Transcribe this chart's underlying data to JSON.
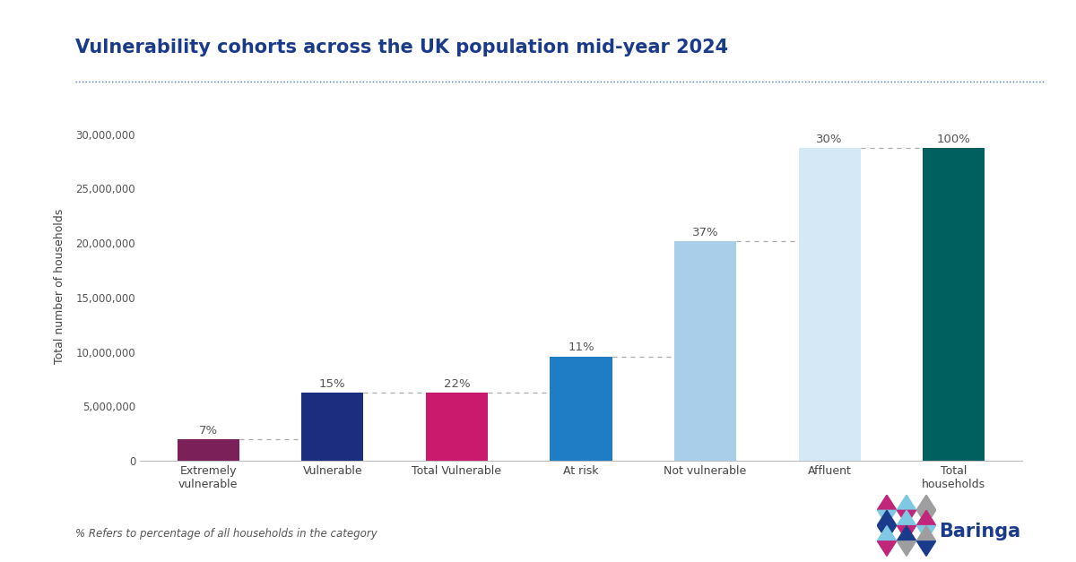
{
  "title": "Vulnerability cohorts across the UK population mid-year 2024",
  "title_color": "#1a3a8c",
  "ylabel": "Total number of households",
  "categories": [
    "Extremely\nvulnerable",
    "Vulnerable",
    "Total Vulnerable",
    "At risk",
    "Not vulnerable",
    "Affluent",
    "Total\nhouseholds"
  ],
  "values": [
    2000000,
    6300000,
    6300000,
    9600000,
    20200000,
    28700000,
    28700000
  ],
  "percentages": [
    "7%",
    "15%",
    "22%",
    "11%",
    "37%",
    "30%",
    "100%"
  ],
  "bar_colors": [
    "#7B2058",
    "#1C2D80",
    "#C91A6E",
    "#1E7DC4",
    "#A8CEEA",
    "#D4E8F5",
    "#006060"
  ],
  "background_color": "#ffffff",
  "ylim": [
    0,
    32000000
  ],
  "yticks": [
    0,
    5000000,
    10000000,
    15000000,
    20000000,
    25000000,
    30000000
  ],
  "dashed_line_color": "#aaaaaa",
  "footnote": "% Refers to percentage of all households in the category",
  "separator_line_color": "#4472C4",
  "pct_fontsize": 9.5,
  "axis_label_fontsize": 9,
  "ylabel_fontsize": 9,
  "title_fontsize": 15
}
